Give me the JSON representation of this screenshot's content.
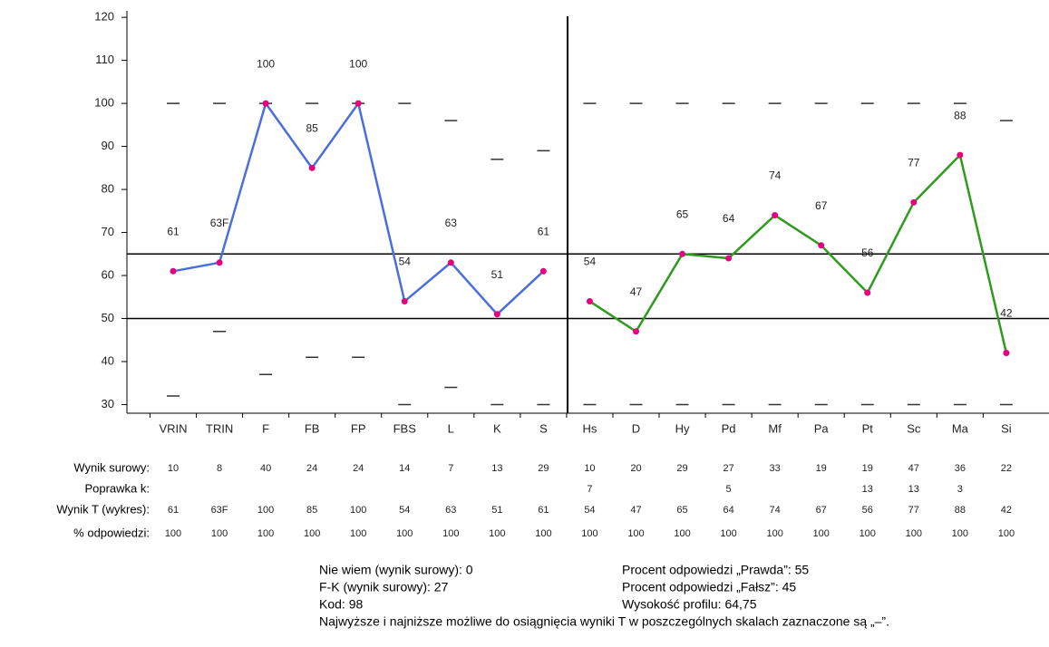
{
  "chart_data": {
    "type": "line",
    "categories": [
      "VRIN",
      "TRIN",
      "F",
      "FB",
      "FP",
      "FBS",
      "L",
      "K",
      "S",
      "Hs",
      "D",
      "Hy",
      "Pd",
      "Mf",
      "Pa",
      "Pt",
      "Sc",
      "Ma",
      "Si"
    ],
    "series": [
      {
        "color": "#4a6fdc",
        "values": [
          61,
          63,
          100,
          85,
          100,
          54,
          63,
          51,
          61,
          null,
          null,
          null,
          null,
          null,
          null,
          null,
          null,
          null,
          null
        ],
        "value_labels": [
          "61",
          "63F",
          "100",
          "85",
          "100",
          "54",
          "63",
          "51",
          "61",
          null,
          null,
          null,
          null,
          null,
          null,
          null,
          null,
          null,
          null
        ]
      },
      {
        "color": "#2e9a1e",
        "values": [
          null,
          null,
          null,
          null,
          null,
          null,
          null,
          null,
          null,
          54,
          47,
          65,
          64,
          74,
          67,
          56,
          77,
          88,
          42
        ]
      }
    ],
    "point_color": "#e6007e",
    "max_markers": [
      100,
      100,
      100,
      100,
      100,
      100,
      96,
      87,
      89,
      100,
      100,
      100,
      100,
      100,
      100,
      100,
      100,
      100,
      96
    ],
    "min_markers": [
      32,
      47,
      37,
      41,
      41,
      30,
      34,
      30,
      30,
      30,
      30,
      30,
      30,
      30,
      30,
      30,
      30,
      30,
      30
    ],
    "reference_lines": [
      65,
      50
    ],
    "ylim": [
      28,
      121.5
    ],
    "yticks": [
      30,
      40,
      50,
      60,
      70,
      80,
      90,
      100,
      110,
      120
    ]
  },
  "table": {
    "row_labels": [
      "Wynik surowy:",
      "Poprawka k:",
      "Wynik T (wykres):",
      "% odpowiedzi:"
    ],
    "rows": [
      [
        10,
        8,
        40,
        24,
        24,
        14,
        7,
        13,
        29,
        10,
        20,
        29,
        27,
        33,
        19,
        19,
        47,
        36,
        22
      ],
      [
        null,
        null,
        null,
        null,
        null,
        null,
        null,
        null,
        null,
        7,
        null,
        null,
        5,
        null,
        null,
        13,
        13,
        3,
        null
      ],
      [
        61,
        "63F",
        100,
        85,
        100,
        54,
        63,
        51,
        61,
        54,
        47,
        65,
        64,
        74,
        67,
        56,
        77,
        88,
        42
      ],
      [
        100,
        100,
        100,
        100,
        100,
        100,
        100,
        100,
        100,
        100,
        100,
        100,
        100,
        100,
        100,
        100,
        100,
        100,
        100
      ]
    ]
  },
  "notes": {
    "left": [
      "Nie wiem (wynik surowy): 0",
      "F-K (wynik surowy): 27",
      "Kod: 98"
    ],
    "right": [
      "Procent odpowiedzi „Prawda”: 55",
      "Procent odpowiedzi „Fałsz”: 45",
      "Wysokość profilu: 64,75"
    ],
    "bottom": "Najwyższe i najniższe możliwe do osiągnięcia wyniki T w poszczególnych skalach zaznaczone są „–”."
  }
}
